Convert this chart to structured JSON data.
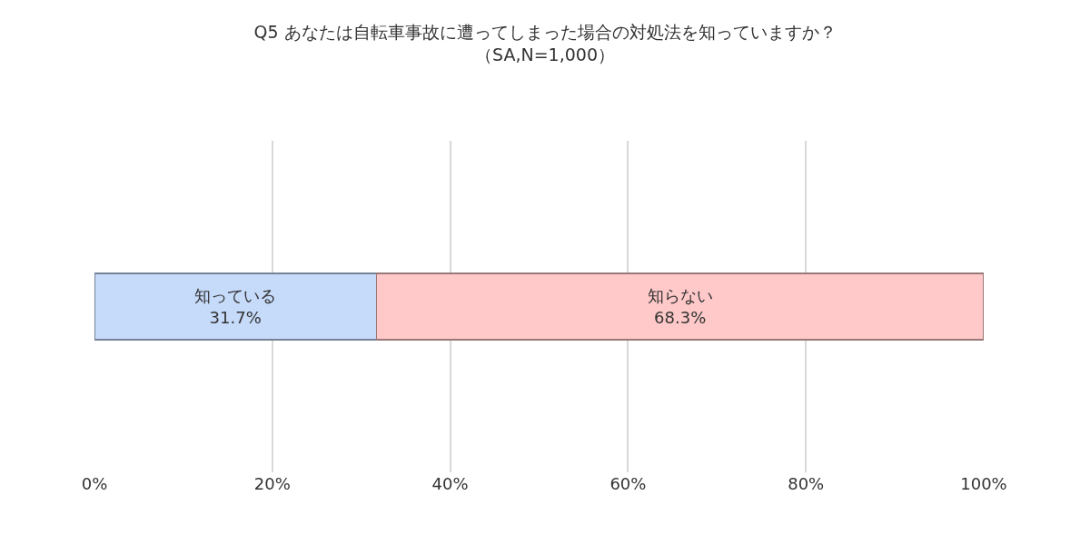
{
  "chart_data": {
    "type": "bar",
    "orientation": "horizontal",
    "stacked": true,
    "title": "Q5 あなたは自転車事故に遭ってしまった場合の対処法を知っていますか？",
    "subtitle": "（SA,N=1,000）",
    "categories": [
      null
    ],
    "series": [
      {
        "name": "知っている",
        "color": "#c6dafa",
        "values": [
          31.7
        ],
        "value_labels": [
          "31.7%"
        ]
      },
      {
        "name": "知らない",
        "color": "#ffc9c9",
        "values": [
          68.3
        ],
        "value_labels": [
          "68.3%"
        ]
      }
    ],
    "xlim": [
      0,
      100
    ],
    "xticks": [
      {
        "value": 0,
        "label": "0%"
      },
      {
        "value": 20,
        "label": "20%"
      },
      {
        "value": 40,
        "label": "40%"
      },
      {
        "value": 60,
        "label": "60%"
      },
      {
        "value": 80,
        "label": "80%"
      },
      {
        "value": 100,
        "label": "100%"
      }
    ],
    "grid": "x",
    "legend": false,
    "tick_labels": "x"
  }
}
